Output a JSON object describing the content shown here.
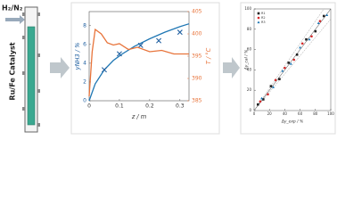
{
  "labels": {
    "feed": "H₂/N₂",
    "catalyst": "Ru/Fe Catalyst"
  },
  "chart_data": [
    {
      "type": "line",
      "xlabel": "z / m",
      "ylabel": "yNH3 / %",
      "y2label": "T / °C",
      "xlim": [
        0,
        0.33
      ],
      "xticks": [
        0,
        0.1,
        0.2,
        0.3
      ],
      "ylim": [
        0,
        9.5
      ],
      "yticks": [
        0,
        2,
        4,
        6,
        8
      ],
      "y2lim": [
        385,
        405
      ],
      "y2ticks": [
        385,
        390,
        395,
        400,
        405
      ],
      "series": [
        {
          "color": "#1f77b4",
          "marker": "line",
          "x": [
            0,
            0.02,
            0.05,
            0.08,
            0.11,
            0.15,
            0.2,
            0.25,
            0.3,
            0.33
          ],
          "values": [
            0,
            1.8,
            3.3,
            4.3,
            5.0,
            5.8,
            6.6,
            7.3,
            7.9,
            8.2
          ]
        },
        {
          "color": "#1f5fa0",
          "marker": "x",
          "x": [
            0.05,
            0.1,
            0.17,
            0.23,
            0.3
          ],
          "values": [
            3.3,
            5.0,
            5.9,
            6.4,
            7.3
          ]
        },
        {
          "color": "#e8743b",
          "marker": "line",
          "axis": "y2",
          "x": [
            0,
            0.01,
            0.02,
            0.04,
            0.06,
            0.08,
            0.1,
            0.13,
            0.16,
            0.2,
            0.24,
            0.28,
            0.33
          ],
          "values": [
            386,
            396,
            401,
            400,
            398,
            397.5,
            397.8,
            396.5,
            397,
            396,
            396.3,
            395.5,
            395.5
          ]
        }
      ]
    },
    {
      "type": "scatter",
      "xlabel": "Δy_exp / %",
      "ylabel": "Δy_cal / %",
      "xlim": [
        0,
        100
      ],
      "xticks": [
        0,
        20,
        40,
        60,
        80,
        100
      ],
      "ylim": [
        0,
        100
      ],
      "yticks": [
        0,
        20,
        40,
        60,
        80,
        100
      ],
      "series": [
        {
          "name": "R1",
          "color": "#222222",
          "marker": "square",
          "x": [
            5,
            12,
            22,
            33,
            45,
            56,
            68,
            80,
            91
          ],
          "values": [
            6,
            11,
            24,
            31,
            47,
            55,
            70,
            78,
            93
          ]
        },
        {
          "name": "R2",
          "color": "#d62728",
          "marker": "circle",
          "x": [
            8,
            18,
            28,
            40,
            52,
            63,
            75,
            86
          ],
          "values": [
            9,
            16,
            30,
            42,
            50,
            66,
            73,
            88
          ]
        },
        {
          "name": "R3",
          "color": "#1f77b4",
          "marker": "triangle",
          "x": [
            10,
            25,
            37,
            48,
            60,
            72,
            84,
            95
          ],
          "values": [
            12,
            23,
            39,
            46,
            62,
            70,
            86,
            94
          ]
        }
      ]
    }
  ]
}
